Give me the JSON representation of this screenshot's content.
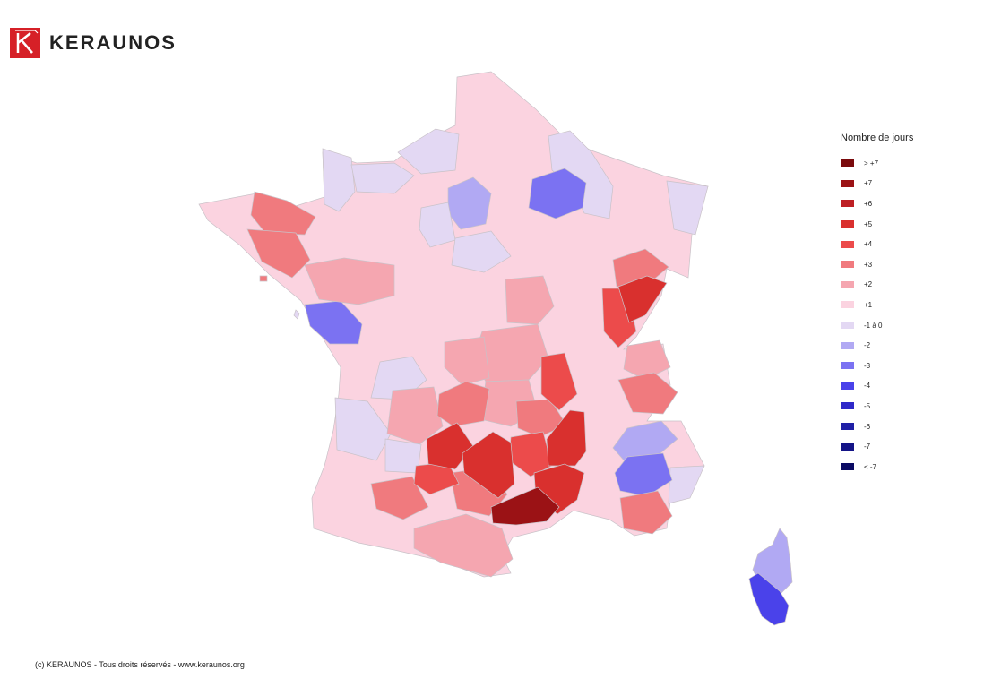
{
  "brand": {
    "name": "KERAUNOS",
    "color": "#d62027"
  },
  "legend": {
    "title": "Nombre de jours",
    "items": [
      {
        "label": "> +7",
        "color": "#7a0a0c"
      },
      {
        "label": "+7",
        "color": "#9b1215"
      },
      {
        "label": "+6",
        "color": "#be1f24"
      },
      {
        "label": "+5",
        "color": "#d9302e"
      },
      {
        "label": "+4",
        "color": "#ec4b4b"
      },
      {
        "label": "+3",
        "color": "#f07a7e"
      },
      {
        "label": "+2",
        "color": "#f5a6b0"
      },
      {
        "label": "+1",
        "color": "#fbd3e0"
      },
      {
        "label": "-1 à 0",
        "color": "#e3d8f3"
      },
      {
        "label": "-2",
        "color": "#b1a9f3"
      },
      {
        "label": "-3",
        "color": "#7b72f2"
      },
      {
        "label": "-4",
        "color": "#4a42ea"
      },
      {
        "label": "-5",
        "color": "#2f29c9"
      },
      {
        "label": "-6",
        "color": "#2020a6"
      },
      {
        "label": "-7",
        "color": "#141487"
      },
      {
        "label": "< -7",
        "color": "#0a0a63"
      }
    ]
  },
  "footer": {
    "text": "(c) KERAUNOS - Tous droits réservés - www.keraunos.org"
  }
}
